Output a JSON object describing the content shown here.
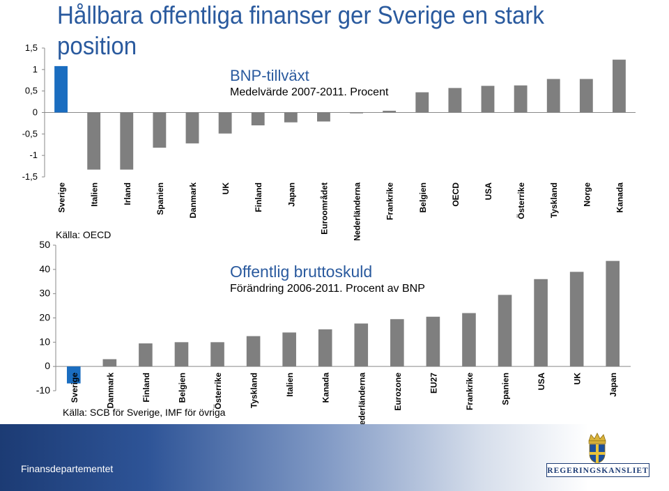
{
  "title": "Hållbara offentliga finanser ger Sverige en stark position",
  "footer": {
    "department": "Finansdepartementet",
    "logo_text": "REGERINGSKANSLIET"
  },
  "chart_data": [
    {
      "type": "bar",
      "title": "BNP-tillväxt",
      "subtitle": "Medelvärde 2007-2011. Procent",
      "source": "Källa: OECD",
      "categories": [
        "Sverige",
        "Italien",
        "Irland",
        "Spanien",
        "Danmark",
        "UK",
        "Finland",
        "Japan",
        "Euroområdet",
        "Nederländerna",
        "Frankrike",
        "Belgien",
        "OECD",
        "USA",
        "Österrike",
        "Tyskland",
        "Norge",
        "Kanada"
      ],
      "values": [
        1.08,
        -1.33,
        -1.33,
        -0.82,
        -0.72,
        -0.49,
        -0.3,
        -0.23,
        -0.21,
        -0.02,
        0.04,
        0.47,
        0.57,
        0.62,
        0.63,
        0.78,
        0.78,
        1.23
      ],
      "highlight_color": "#1a6dc0",
      "bar_color": "#7f7f7f",
      "y_ticks": [
        "1,5",
        "1",
        "0,5",
        "0",
        "-0,5",
        "-1",
        "-1,5"
      ],
      "ylim": [
        -1.5,
        1.5
      ],
      "grid": false
    },
    {
      "type": "bar",
      "title": "Offentlig bruttoskuld",
      "subtitle": "Förändring 2006-2011. Procent av BNP",
      "source": "Källa: SCB för Sverige, IMF för övriga",
      "categories": [
        "Sverige",
        "Danmark",
        "Finland",
        "Belgien",
        "Österrike",
        "Tyskland",
        "Italien",
        "Kanada",
        "Nederländerna",
        "Eurozone",
        "EU27",
        "Frankrike",
        "Spanien",
        "USA",
        "UK",
        "Japan"
      ],
      "values": [
        -7,
        3,
        9.5,
        10,
        10,
        12.5,
        14,
        15.3,
        17.7,
        19.5,
        20.5,
        22,
        29.5,
        36,
        39,
        43.5
      ],
      "highlight_color": "#1a6dc0",
      "bar_color": "#7f7f7f",
      "y_ticks": [
        "50",
        "40",
        "30",
        "20",
        "10",
        "0",
        "-10"
      ],
      "ylim": [
        -10,
        50
      ],
      "grid": false
    }
  ]
}
